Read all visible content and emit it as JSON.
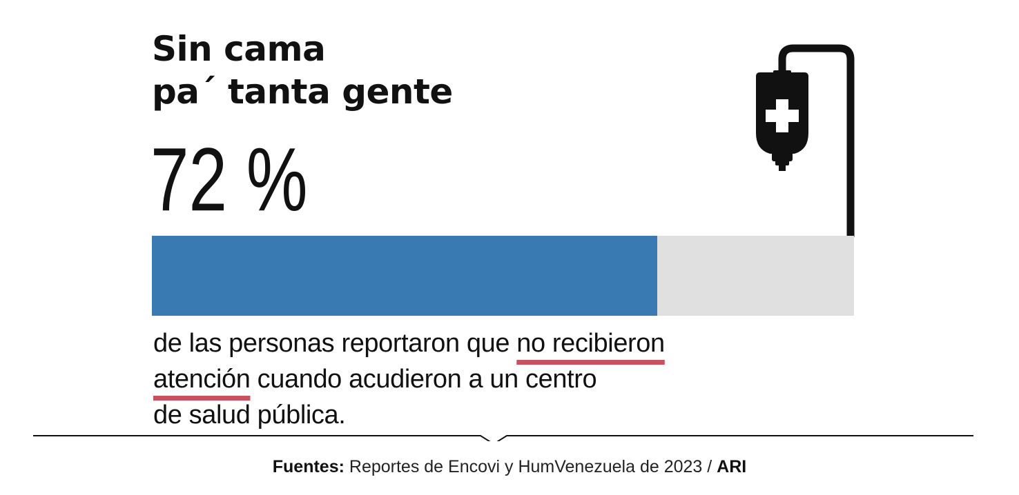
{
  "chart_data": {
    "type": "bar",
    "title_lines": [
      "Sin cama",
      "pa´ tanta gente"
    ],
    "value_label": "72 %",
    "value_percent": 72,
    "range": [
      0,
      100
    ],
    "description": {
      "line1_before": "de las personas reportaron que ",
      "line1_highlight": "no recibieron",
      "line2_highlight": "atención",
      "line2_after": " cuando acudieron a un centro",
      "line3": "de salud pública."
    },
    "source": {
      "label": "Fuentes:",
      "text": " Reportes de Encovi y HumVenezuela de 2023 / ",
      "org": "ARI"
    }
  },
  "colors": {
    "bar_fill": "#3a7ab3",
    "bar_track": "#e0e0e0",
    "highlight_underline": "#c9505e",
    "text": "#111111"
  },
  "icons": {
    "main": "iv-bag-icon"
  }
}
